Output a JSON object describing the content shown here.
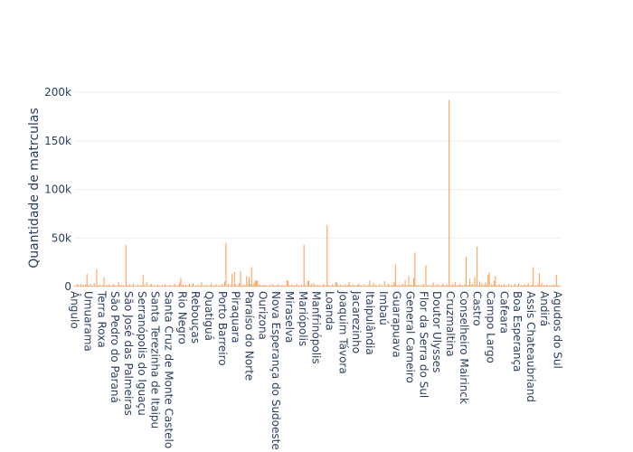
{
  "chart_data": {
    "type": "bar",
    "y_label": "Quantidade de matrculas",
    "color": "#FFA15A",
    "grid": true,
    "ylim": [
      0,
      202000
    ],
    "yticks": [
      0,
      {
        "value": 50000,
        "label": "50k"
      },
      {
        "value": 100000,
        "label": "100k"
      },
      {
        "value": 150000,
        "label": "150k"
      },
      {
        "value": 200000,
        "label": "200k"
      }
    ],
    "categories": [
      "Ângulo",
      null,
      null,
      null,
      null,
      null,
      null,
      null,
      null,
      null,
      null,
      "Umuarama",
      null,
      null,
      null,
      null,
      null,
      null,
      null,
      null,
      null,
      null,
      "Terra Roxa",
      null,
      null,
      null,
      null,
      null,
      null,
      null,
      null,
      null,
      null,
      "São Pedro do Paraná",
      null,
      null,
      null,
      null,
      null,
      null,
      null,
      null,
      null,
      null,
      "São José das Palmeiras",
      null,
      null,
      null,
      null,
      null,
      null,
      null,
      null,
      null,
      null,
      "Serranópolis do Iguaçu",
      null,
      null,
      null,
      null,
      null,
      null,
      null,
      null,
      null,
      null,
      "Santa Terezinha de Itaipu",
      null,
      null,
      null,
      null,
      null,
      null,
      null,
      null,
      null,
      null,
      "Santa Cruz de Monte Castelo",
      null,
      null,
      null,
      null,
      null,
      null,
      null,
      null,
      null,
      null,
      "Rio Negro",
      null,
      null,
      null,
      null,
      null,
      null,
      null,
      null,
      null,
      null,
      "Rebouças",
      null,
      null,
      null,
      null,
      null,
      null,
      null,
      null,
      null,
      null,
      "Quatiguá",
      null,
      null,
      null,
      null,
      null,
      null,
      null,
      null,
      null,
      null,
      "Porto Barreiro",
      null,
      null,
      null,
      null,
      null,
      null,
      null,
      null,
      null,
      null,
      "Piraquara",
      null,
      null,
      null,
      null,
      null,
      null,
      null,
      null,
      null,
      null,
      "Paraíso do Norte",
      null,
      null,
      null,
      null,
      null,
      null,
      null,
      null,
      null,
      null,
      "Ourizona",
      null,
      null,
      null,
      null,
      null,
      null,
      null,
      null,
      null,
      null,
      "Nova Esperança do Sudoeste",
      null,
      null,
      null,
      null,
      null,
      null,
      null,
      null,
      null,
      null,
      "Miraselva",
      null,
      null,
      null,
      null,
      null,
      null,
      null,
      null,
      null,
      null,
      "Mariópolis",
      null,
      null,
      null,
      null,
      null,
      null,
      null,
      null,
      null,
      null,
      "Manfrinópolis",
      null,
      null,
      null,
      null,
      null,
      null,
      null,
      null,
      null,
      null,
      "Loanda",
      null,
      null,
      null,
      null,
      null,
      null,
      null,
      null,
      null,
      null,
      "Joaquim Távora",
      null,
      null,
      null,
      null,
      null,
      null,
      null,
      null,
      null,
      null,
      "Jacarezinho",
      null,
      null,
      null,
      null,
      null,
      null,
      null,
      null,
      null,
      null,
      "Itaipulândia",
      null,
      null,
      null,
      null,
      null,
      null,
      null,
      null,
      null,
      null,
      "Imbaú",
      null,
      null,
      null,
      null,
      null,
      null,
      null,
      null,
      null,
      null,
      "Guarapuava",
      null,
      null,
      null,
      null,
      null,
      null,
      null,
      null,
      null,
      null,
      "General Carneiro",
      null,
      null,
      null,
      null,
      null,
      null,
      null,
      null,
      null,
      null,
      "Flor da Serra do Sul",
      null,
      null,
      null,
      null,
      null,
      null,
      null,
      null,
      null,
      null,
      "Doutor Ulysses",
      null,
      null,
      null,
      null,
      null,
      null,
      null,
      null,
      null,
      null,
      "Cruzmaltina",
      null,
      null,
      null,
      null,
      null,
      null,
      null,
      null,
      null,
      null,
      "Conselheiro Mairinck",
      null,
      null,
      null,
      null,
      null,
      null,
      null,
      null,
      null,
      null,
      "Castro",
      null,
      null,
      null,
      null,
      null,
      null,
      null,
      null,
      null,
      null,
      "Campo Largo",
      null,
      null,
      null,
      null,
      null,
      null,
      null,
      null,
      null,
      null,
      "Cafeara",
      null,
      null,
      null,
      null,
      null,
      null,
      null,
      null,
      null,
      null,
      "Boa Esperança",
      null,
      null,
      null,
      null,
      null,
      null,
      null,
      null,
      null,
      null,
      "Assis Chateaubriand",
      null,
      null,
      null,
      null,
      null,
      null,
      null,
      null,
      null,
      null,
      "Andirá",
      null,
      null,
      null,
      null,
      null,
      null,
      null,
      null,
      null,
      null,
      "Agudos do Sul",
      null,
      null
    ],
    "values": [
      1200,
      800,
      2500,
      1500,
      600,
      3100,
      900,
      1800,
      700,
      2200,
      13000,
      1500,
      900,
      2800,
      600,
      1100,
      3500,
      700,
      18000,
      1300,
      900,
      2100,
      600,
      1400,
      10000,
      800,
      1700,
      500,
      2300,
      1000,
      700,
      1500,
      2600,
      900,
      600,
      1200,
      5000,
      800,
      1900,
      600,
      1100,
      700,
      43000,
      1300,
      900,
      2400,
      600,
      1000,
      3200,
      700,
      1500,
      800,
      2000,
      600,
      1100,
      900,
      12000,
      1400,
      700,
      4800,
      900,
      600,
      1800,
      2600,
      700,
      1300,
      900,
      500,
      2100,
      800,
      1200,
      600,
      1600,
      900,
      2400,
      700,
      1100,
      500,
      1900,
      800,
      600,
      1300,
      2700,
      900,
      700,
      1500,
      4200,
      9000,
      1000,
      2300,
      700,
      1800,
      600,
      1200,
      2900,
      800,
      1000,
      3500,
      700,
      1400,
      900,
      2200,
      600,
      1100,
      4600,
      800,
      1300,
      700,
      2000,
      900,
      600,
      1500,
      3800,
      700,
      1200,
      800,
      2500,
      600,
      1000,
      1700,
      700,
      2800,
      900,
      5200,
      45000,
      1100,
      3000,
      700,
      1600,
      13000,
      900,
      15000,
      2400,
      800,
      1300,
      3600,
      16000,
      700,
      1100,
      2200,
      900,
      11000,
      1500,
      10000,
      2600,
      20000,
      1200,
      3400,
      5800,
      6500,
      6000,
      1000,
      2300,
      700,
      1400,
      900,
      2000,
      600,
      1200,
      800,
      1700,
      600,
      2600,
      900,
      1100,
      700,
      1500,
      2400,
      600,
      1000,
      1900,
      700,
      1200,
      600,
      6500,
      5800,
      1100,
      800,
      2100,
      700,
      1400,
      900,
      3000,
      600,
      1200,
      800,
      2200,
      1000,
      43000,
      1500,
      700,
      5500,
      6200,
      1100,
      2900,
      800,
      3600,
      1300,
      700,
      2000,
      900,
      1500,
      600,
      1200,
      2600,
      800,
      1100,
      63000,
      1700,
      900,
      600,
      2300,
      1000,
      700,
      5000,
      4200,
      1400,
      800,
      1900,
      600,
      1200,
      900,
      2700,
      700,
      1500,
      4800,
      1000,
      600,
      2200,
      800,
      1300,
      700,
      1800,
      3100,
      900,
      1100,
      600,
      2400,
      800,
      1400,
      700,
      1600,
      6200,
      900,
      1200,
      3800,
      700,
      2000,
      1000,
      600,
      2500,
      900,
      1300,
      700,
      5600,
      1100,
      800,
      3000,
      1500,
      700,
      2200,
      900,
      4400,
      23000,
      1200,
      700,
      1800,
      600,
      1400,
      2600,
      900,
      6500,
      800,
      1700,
      11000,
      1000,
      2300,
      700,
      9000,
      35000,
      1200,
      800,
      2000,
      600,
      1500,
      900,
      2700,
      700,
      22000,
      1300,
      800,
      1900,
      600,
      1200,
      4200,
      700,
      1000,
      2400,
      800,
      1600,
      600,
      1300,
      3300,
      900,
      700,
      2100,
      1100,
      192000,
      1500,
      800,
      2600,
      900,
      4500,
      700,
      1800,
      1200,
      3000,
      800,
      1400,
      600,
      2300,
      31000,
      900,
      1700,
      8000,
      1100,
      2800,
      700,
      9800,
      1500,
      41000,
      900,
      5200,
      1200,
      3500,
      800,
      2000,
      4100,
      1300,
      12000,
      15000,
      800,
      2600,
      1000,
      6000,
      11000,
      1400,
      700,
      2200,
      900,
      1600,
      600,
      2400,
      800,
      1200,
      700,
      3000,
      900,
      1500,
      600,
      1100,
      2700,
      800,
      1400,
      3600,
      700,
      1900,
      900,
      1200,
      2500,
      800,
      1500,
      3200,
      700,
      1000,
      1800,
      20000,
      900,
      1300,
      600,
      2400,
      14000,
      1100,
      3500,
      800,
      1700,
      900,
      2200,
      700,
      1300,
      600,
      1600,
      900,
      2000,
      800,
      12000,
      1400,
      700,
      1100
    ]
  }
}
